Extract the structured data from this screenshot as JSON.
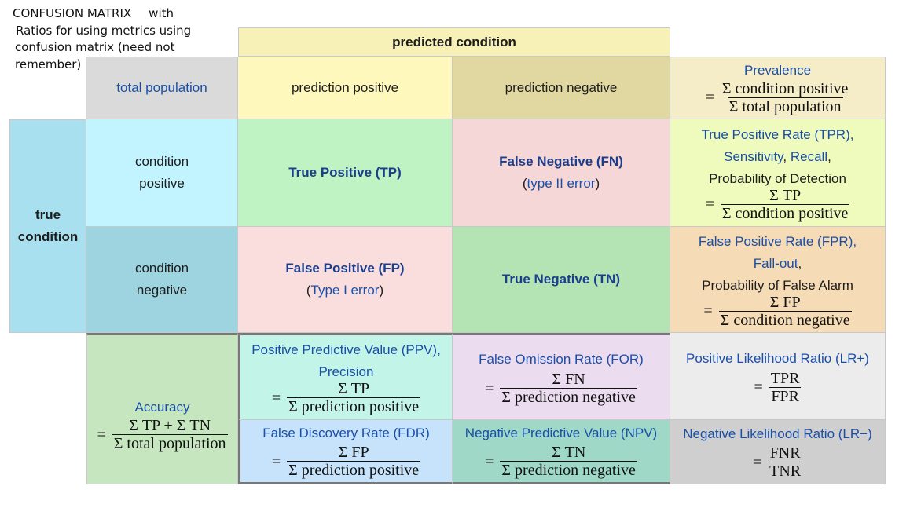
{
  "note": {
    "line1a": "CONFUSION MATRIX",
    "line1b": "with",
    "line2": "Ratios for using metrics using",
    "line3": "confusion matrix (need not",
    "line4": "remember)"
  },
  "header": {
    "predicted_condition": "predicted condition",
    "total_population": "total population",
    "prediction_positive": "prediction positive",
    "prediction_negative": "prediction negative",
    "prevalence": {
      "title": "Prevalence",
      "eq": "=",
      "num": "Σ condition positive",
      "den": "Σ total population"
    }
  },
  "side": {
    "true_condition_1": "true",
    "true_condition_2": "condition",
    "condition_positive_1": "condition",
    "condition_positive_2": "positive",
    "condition_negative_1": "condition",
    "condition_negative_2": "negative"
  },
  "cells": {
    "tp": "True Positive (TP)",
    "fn_title": "False Negative (FN)",
    "fn_sub_a": "(",
    "fn_sub_b": "type II error",
    "fn_sub_c": ")",
    "fp_title": "False Positive (FP)",
    "fp_sub_a": "(",
    "fp_sub_b": "Type I error",
    "fp_sub_c": ")",
    "tn": "True Negative (TN)"
  },
  "tpr": {
    "line1": "True Positive Rate (TPR),",
    "line2a": "Sensitivity",
    "line2b": ", ",
    "line2c": "Recall",
    "line2d": ",",
    "line3": "Probability of Detection",
    "eq": "=",
    "num": "Σ TP",
    "den": "Σ condition positive"
  },
  "fpr": {
    "line1": "False Positive Rate (FPR),",
    "line2a": "Fall-out",
    "line2b": ",",
    "line3": "Probability of False Alarm",
    "eq": "=",
    "num": "Σ FP",
    "den": "Σ condition negative"
  },
  "accuracy": {
    "title": "Accuracy",
    "eq": "=",
    "num": "Σ TP + Σ TN",
    "den": "Σ total population"
  },
  "ppv": {
    "line1": "Positive Predictive Value (PPV),",
    "line2": "Precision",
    "eq": "=",
    "num": "Σ TP",
    "den": "Σ prediction positive"
  },
  "for": {
    "title": "False Omission Rate (FOR)",
    "eq": "=",
    "num": "Σ FN",
    "den": "Σ prediction negative"
  },
  "lrp": {
    "title": "Positive Likelihood Ratio (LR+)",
    "eq": "=",
    "num": "TPR",
    "den": "FPR"
  },
  "fdr": {
    "title": "False Discovery Rate (FDR)",
    "eq": "=",
    "num": "Σ FP",
    "den": "Σ prediction positive"
  },
  "npv": {
    "title": "Negative Predictive Value (NPV)",
    "eq": "=",
    "num": "Σ TN",
    "den": "Σ prediction negative"
  },
  "lrn": {
    "title": "Negative Likelihood Ratio (LR−)",
    "eq": "=",
    "num": "FNR",
    "den": "TNR"
  },
  "colors": {
    "yellow": "#fff8bd",
    "olive": "#e0d7a1",
    "grey": "#dadada",
    "beige": "#f5ecc8",
    "cyan": "#a9e0f0",
    "lightcyan": "#c2f4ff",
    "teal": "#9ed4e0",
    "green": "#bff3c3",
    "pink": "#f6d7d7",
    "lime": "#eefbbd",
    "peach": "#f6dcb6",
    "pink2": "#fadedd",
    "green2": "#b4e3b4",
    "acc": "#c6e6c0",
    "aqua": "#c2f5e8",
    "lilac": "#ecdcef",
    "lightgrey": "#ececec",
    "sky": "#c6e3fb",
    "mint": "#9fd8c6",
    "midgrey": "#cfcfcf"
  }
}
